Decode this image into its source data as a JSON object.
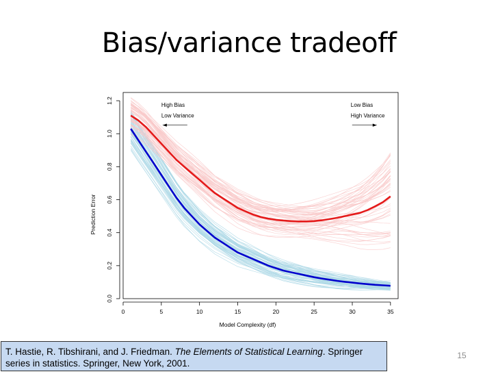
{
  "slide": {
    "title": "Bias/variance tradeoff",
    "citation": {
      "before": "T. Hastie, R. Tibshirani, and J. Friedman. ",
      "book": "The Elements of Statistical Learning",
      "after": ". Springer series in statistics. Springer, New York, 2001."
    },
    "number": "15"
  },
  "chart_data": {
    "type": "line",
    "xlabel": "Model Complexity (df)",
    "ylabel": "Prediction Error",
    "xlim": [
      0,
      36
    ],
    "ylim": [
      0,
      1.25
    ],
    "xticks": [
      0,
      5,
      10,
      15,
      20,
      25,
      30,
      35
    ],
    "yticks": [
      0.0,
      0.2,
      0.4,
      0.6,
      0.8,
      1.0,
      1.2
    ],
    "ytick_labels": [
      "0.0",
      "0.2",
      "0.4",
      "0.6",
      "0.8",
      "1.0",
      "1.2"
    ],
    "grid": false,
    "annotations": [
      {
        "text": "High Bias",
        "x": 5,
        "y": 1.175,
        "align": "left"
      },
      {
        "text": "Low Variance",
        "x": 5,
        "y": 1.11,
        "align": "left",
        "arrow": "left"
      },
      {
        "text": "Low Bias",
        "x": 29.8,
        "y": 1.175,
        "align": "left"
      },
      {
        "text": "High Variance",
        "x": 29.8,
        "y": 1.11,
        "align": "left",
        "arrow": "right"
      }
    ],
    "series": [
      {
        "color": "#0000cc",
        "light_color": "#add8e6",
        "x": [
          1,
          2,
          3,
          4,
          5,
          6,
          7,
          8,
          9,
          10,
          11,
          12,
          13,
          14,
          15,
          16,
          17,
          18,
          19,
          20,
          21,
          22,
          23,
          24,
          25,
          26,
          27,
          28,
          29,
          30,
          31,
          32,
          33,
          34,
          35
        ],
        "values": [
          1.03,
          0.96,
          0.89,
          0.82,
          0.75,
          0.68,
          0.61,
          0.55,
          0.5,
          0.45,
          0.41,
          0.37,
          0.34,
          0.31,
          0.28,
          0.26,
          0.24,
          0.22,
          0.2,
          0.185,
          0.17,
          0.16,
          0.15,
          0.14,
          0.13,
          0.122,
          0.115,
          0.108,
          0.102,
          0.097,
          0.092,
          0.088,
          0.084,
          0.081,
          0.078
        ]
      },
      {
        "color": "#e41a1a",
        "light_color": "#f9c8c8",
        "x": [
          1,
          2,
          3,
          4,
          5,
          6,
          7,
          8,
          9,
          10,
          11,
          12,
          13,
          14,
          15,
          16,
          17,
          18,
          19,
          20,
          21,
          22,
          23,
          24,
          25,
          26,
          27,
          28,
          29,
          30,
          31,
          32,
          33,
          34,
          35
        ],
        "values": [
          1.11,
          1.08,
          1.04,
          0.99,
          0.94,
          0.89,
          0.84,
          0.8,
          0.76,
          0.72,
          0.68,
          0.64,
          0.61,
          0.58,
          0.55,
          0.53,
          0.51,
          0.495,
          0.485,
          0.478,
          0.473,
          0.47,
          0.468,
          0.468,
          0.47,
          0.475,
          0.482,
          0.49,
          0.5,
          0.51,
          0.52,
          0.537,
          0.56,
          0.585,
          0.62
        ]
      }
    ]
  }
}
